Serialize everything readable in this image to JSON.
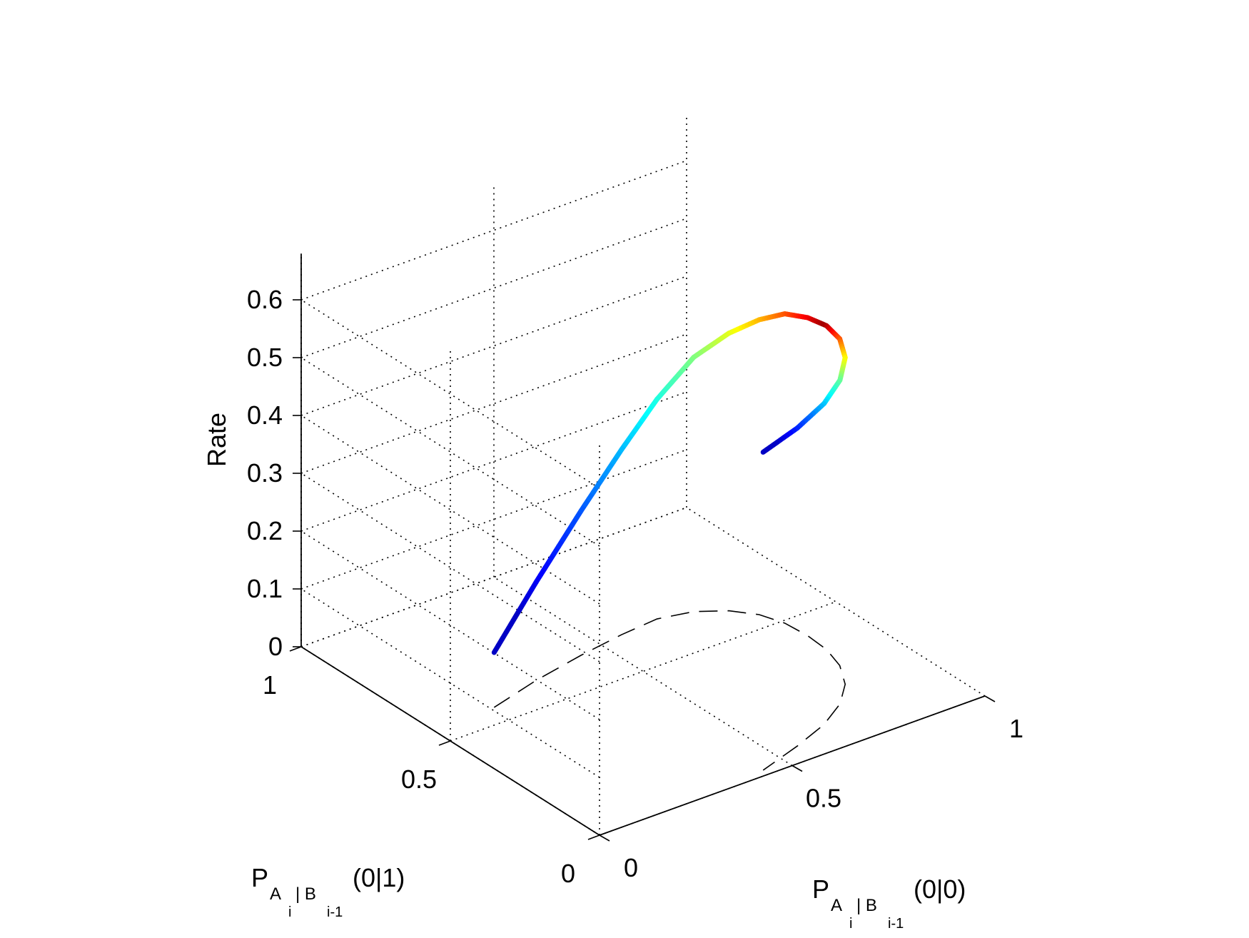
{
  "chart_data": {
    "type": "line",
    "projection": "3d",
    "title": "",
    "axes": {
      "x": {
        "label_main": "P",
        "label_sub": "A",
        "label_subsub": "i",
        "label_mid": " | B",
        "label_subsub2": "i-1",
        "label_tail": "(0|0)",
        "range": [
          0,
          1
        ],
        "ticks": [
          0,
          0.5,
          1
        ],
        "tick_labels": [
          "0",
          "0.5",
          "1"
        ]
      },
      "y": {
        "label_main": "P",
        "label_sub": "A",
        "label_subsub": "i",
        "label_mid": " | B",
        "label_subsub2": "i-1",
        "label_tail": "(0|1)",
        "range": [
          0,
          1
        ],
        "ticks": [
          0,
          0.5,
          1
        ],
        "tick_labels": [
          "0",
          "0.5",
          "1"
        ]
      },
      "z": {
        "label": "Rate",
        "range": [
          0,
          0.68
        ],
        "ticks": [
          0,
          0.1,
          0.2,
          0.3,
          0.4,
          0.5,
          0.6
        ],
        "tick_labels": [
          "0",
          "0.1",
          "0.2",
          "0.3",
          "0.4",
          "0.5",
          "0.6"
        ]
      }
    },
    "grid": true,
    "colormap": "jet",
    "series": [
      {
        "style": "thick colored curve",
        "x": [
          0.16,
          0.3,
          0.44,
          0.56,
          0.66,
          0.74,
          0.8,
          0.84,
          0.86,
          0.865,
          0.86,
          0.84,
          0.8,
          0.74,
          0.66,
          0.56,
          0.44
        ],
        "y": [
          0.56,
          0.6,
          0.63,
          0.65,
          0.66,
          0.64,
          0.6,
          0.55,
          0.49,
          0.42,
          0.35,
          0.28,
          0.21,
          0.15,
          0.1,
          0.06,
          0.02
        ],
        "z": [
          0.095,
          0.17,
          0.25,
          0.32,
          0.38,
          0.44,
          0.48,
          0.51,
          0.535,
          0.55,
          0.56,
          0.565,
          0.565,
          0.56,
          0.555,
          0.55,
          0.55
        ]
      },
      {
        "style": "dashed projection",
        "x": [
          0.16,
          0.3,
          0.44,
          0.56,
          0.66,
          0.74,
          0.8,
          0.84,
          0.86,
          0.865,
          0.86,
          0.84,
          0.8,
          0.74,
          0.66,
          0.56,
          0.44
        ],
        "y": [
          0.56,
          0.6,
          0.63,
          0.65,
          0.66,
          0.64,
          0.6,
          0.55,
          0.49,
          0.42,
          0.35,
          0.28,
          0.21,
          0.15,
          0.1,
          0.06,
          0.02
        ],
        "z": [
          0,
          0,
          0,
          0,
          0,
          0,
          0,
          0,
          0,
          0,
          0,
          0,
          0,
          0,
          0,
          0,
          0
        ]
      }
    ]
  }
}
